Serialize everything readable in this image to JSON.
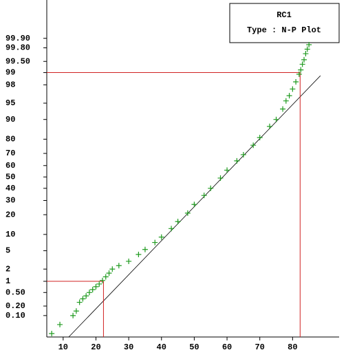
{
  "chart_data": {
    "type": "normal-probability",
    "title": "RC1",
    "subtitle": "Type : N-P Plot",
    "x": [
      6.5,
      9,
      13,
      14,
      15,
      16,
      17,
      18,
      19,
      20,
      21,
      22,
      23,
      24,
      25,
      27,
      30,
      33,
      35,
      38,
      40,
      43,
      45,
      48,
      50,
      53,
      55,
      58,
      60,
      63,
      65,
      68,
      70,
      73,
      75,
      77,
      78,
      79,
      80,
      81,
      82,
      82.5,
      83,
      83.5,
      84,
      84.5,
      85
    ],
    "values": [
      0.024,
      0.05,
      0.1,
      0.14,
      0.26,
      0.33,
      0.4,
      0.5,
      0.6,
      0.72,
      0.85,
      1.05,
      1.3,
      1.6,
      2.0,
      2.4,
      3.0,
      4.2,
      5.3,
      7.2,
      9.0,
      12.5,
      16,
      21,
      27,
      34,
      40,
      49,
      56,
      64,
      69,
      76,
      81,
      87,
      90,
      93.5,
      95.5,
      96.5,
      97.5,
      98.3,
      98.9,
      99.15,
      99.4,
      99.55,
      99.7,
      99.78,
      99.84
    ],
    "color": "#1e9a1e",
    "xlim": [
      5,
      94.2
    ],
    "xticks": [
      10,
      20,
      30,
      40,
      50,
      60,
      70,
      80
    ],
    "ylim": [
      0.018,
      99.996
    ],
    "yticks": [
      {
        "value": 0.1,
        "label": "0.10"
      },
      {
        "value": 0.2,
        "label": "0.20"
      },
      {
        "value": 0.5,
        "label": "0.50"
      },
      1,
      2,
      5,
      10,
      20,
      30,
      40,
      50,
      60,
      70,
      80,
      90,
      95,
      98,
      99,
      {
        "value": 99.5,
        "label": "99.50"
      },
      {
        "value": 99.8,
        "label": "99.80"
      },
      {
        "value": 99.9,
        "label": "99.90"
      }
    ],
    "fit_line": {
      "x": [
        11.7,
        88.5
      ],
      "values": [
        0.018,
        98.8
      ],
      "color": "#000000"
    },
    "reference_lines": [
      {
        "x": 22.3,
        "y": 1
      },
      {
        "x": 82.3,
        "y": 99
      }
    ],
    "reference_color": "#d02020"
  }
}
